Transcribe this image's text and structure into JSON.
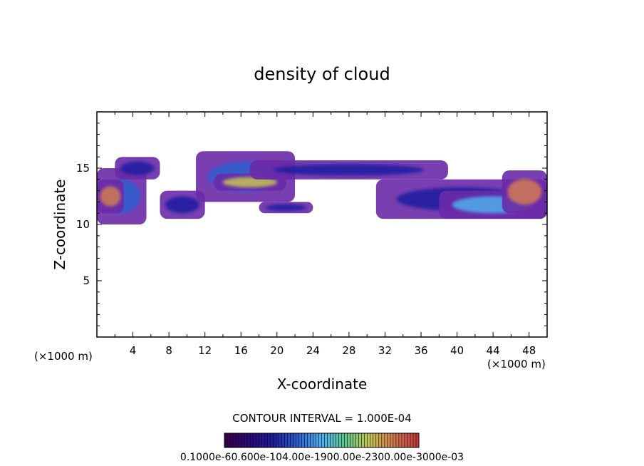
{
  "chart_data": {
    "type": "heatmap",
    "title": "density of cloud",
    "xlabel": "X-coordinate",
    "ylabel": "Z-coordinate",
    "x_unit": "(×1000 m)",
    "xlim": [
      0,
      50
    ],
    "ylim": [
      0,
      20
    ],
    "x_ticks": [
      4,
      8,
      12,
      16,
      20,
      24,
      28,
      32,
      36,
      40,
      44,
      48
    ],
    "y_ticks": [
      5,
      10,
      15
    ],
    "contour_interval_label": "CONTOUR INTERVAL = 1.000E-04",
    "colorbar_label": "0.1000e-60.600e-104.00e-1900.00e-2300.00e-3000e-03",
    "colorbar_range": [
      1e-07,
      0.001
    ],
    "colormap": [
      "#3a0050",
      "#2a0b7a",
      "#1f1fa0",
      "#2d5fd0",
      "#4fb0ee",
      "#5ec88a",
      "#c7c455",
      "#d27b52",
      "#c33c3c"
    ],
    "cloud_regions": [
      {
        "x": [
          0,
          5.5
        ],
        "z": [
          10,
          15
        ],
        "level": 0.35
      },
      {
        "x": [
          2,
          7
        ],
        "z": [
          14,
          16
        ],
        "level": 0.25
      },
      {
        "x": [
          0,
          3
        ],
        "z": [
          11,
          14
        ],
        "level": 0.85
      },
      {
        "x": [
          7,
          12
        ],
        "z": [
          10.5,
          13
        ],
        "level": 0.3
      },
      {
        "x": [
          11,
          22
        ],
        "z": [
          12,
          16.5
        ],
        "level": 0.35
      },
      {
        "x": [
          13,
          21
        ],
        "z": [
          13,
          14.5
        ],
        "level": 0.7
      },
      {
        "x": [
          17,
          39
        ],
        "z": [
          14,
          15.7
        ],
        "level": 0.3
      },
      {
        "x": [
          18,
          24
        ],
        "z": [
          11,
          12
        ],
        "level": 0.25
      },
      {
        "x": [
          31,
          50
        ],
        "z": [
          10.5,
          14
        ],
        "level": 0.3
      },
      {
        "x": [
          38,
          50
        ],
        "z": [
          10.5,
          13
        ],
        "level": 0.5
      },
      {
        "x": [
          45,
          50
        ],
        "z": [
          11,
          14.8
        ],
        "level": 0.9
      }
    ]
  }
}
